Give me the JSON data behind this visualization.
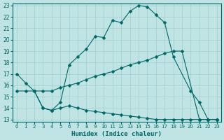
{
  "xlabel": "Humidex (Indice chaleur)",
  "bg_color": "#c0e4e4",
  "line_color": "#006666",
  "grid_color": "#9ecece",
  "xlim": [
    -0.5,
    23.5
  ],
  "ylim": [
    12.8,
    23.2
  ],
  "yticks": [
    13,
    14,
    15,
    16,
    17,
    18,
    19,
    20,
    21,
    22,
    23
  ],
  "xticks": [
    0,
    1,
    2,
    3,
    4,
    5,
    6,
    7,
    8,
    9,
    10,
    11,
    12,
    13,
    14,
    15,
    16,
    17,
    18,
    19,
    20,
    21,
    22,
    23
  ],
  "series1_x": [
    0,
    1,
    2,
    3,
    4,
    5,
    6,
    7,
    8,
    9,
    10,
    11,
    12,
    13,
    14,
    15,
    16,
    17,
    18,
    20,
    21,
    22,
    23
  ],
  "series1_y": [
    17.0,
    16.2,
    15.5,
    14.0,
    13.8,
    14.5,
    17.8,
    18.5,
    19.2,
    20.3,
    20.2,
    21.7,
    21.5,
    22.5,
    23.0,
    22.9,
    22.2,
    21.5,
    18.5,
    15.5,
    14.5,
    13.0,
    13.0
  ],
  "series2_x": [
    0,
    1,
    2,
    3,
    4,
    5,
    6,
    7,
    8,
    9,
    10,
    11,
    12,
    13,
    14,
    15,
    16,
    17,
    18,
    19,
    21,
    22,
    23
  ],
  "series2_y": [
    15.5,
    15.5,
    15.5,
    15.5,
    15.5,
    15.8,
    16.0,
    16.2,
    16.5,
    16.8,
    17.0,
    17.2,
    17.5,
    17.8,
    18.0,
    18.2,
    18.5,
    18.8,
    19.0,
    19.0,
    13.0,
    13.0,
    13.0
  ],
  "series3_x": [
    2,
    3,
    4,
    5,
    6,
    7,
    8,
    9,
    10,
    11,
    12,
    13,
    14,
    15,
    16,
    17,
    18,
    19,
    20,
    21,
    22,
    23
  ],
  "series3_y": [
    15.5,
    14.0,
    13.8,
    14.0,
    14.2,
    14.0,
    13.8,
    13.7,
    13.6,
    13.5,
    13.4,
    13.3,
    13.2,
    13.1,
    13.0,
    13.0,
    13.0,
    13.0,
    13.0,
    13.0,
    13.0,
    13.0
  ],
  "markersize": 2.5
}
